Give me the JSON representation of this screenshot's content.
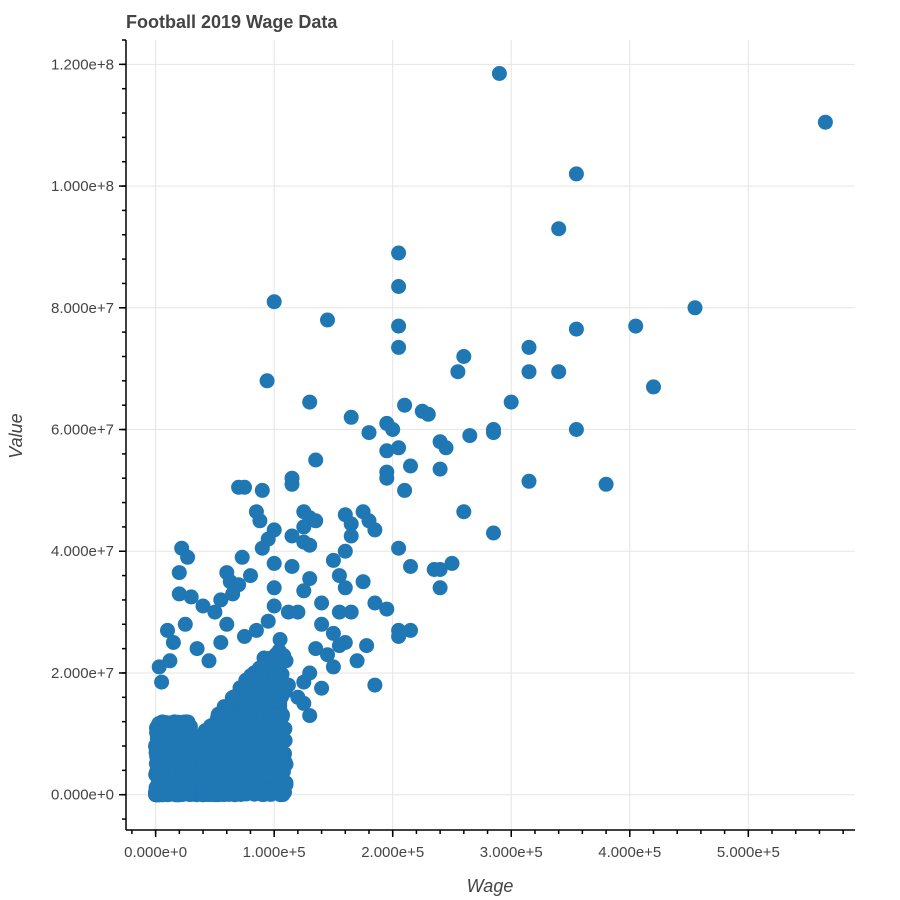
{
  "chart_data": {
    "type": "scatter",
    "title": "Football 2019 Wage Data",
    "xlabel": "Wage",
    "ylabel": "Value",
    "xlim": [
      -25000,
      590000
    ],
    "ylim": [
      -5800000,
      124000000
    ],
    "x_ticks": [
      0,
      100000,
      200000,
      300000,
      400000,
      500000
    ],
    "x_tick_labels": [
      "0.000e+0",
      "1.000e+5",
      "2.000e+5",
      "3.000e+5",
      "4.000e+5",
      "5.000e+5"
    ],
    "x_minor_step": 20000,
    "y_ticks": [
      0,
      20000000,
      40000000,
      60000000,
      80000000,
      100000000,
      120000000
    ],
    "y_tick_labels": [
      "0.000e+0",
      "2.000e+7",
      "4.000e+7",
      "6.000e+7",
      "8.000e+7",
      "1.000e+8",
      "1.200e+8"
    ],
    "y_minor_step": 4000000,
    "grid": true,
    "marker_color": "#1f77b4",
    "series": [
      {
        "points": [
          [
            290000,
            118500000
          ],
          [
            565000,
            110500000
          ],
          [
            355000,
            102000000
          ],
          [
            340000,
            93000000
          ],
          [
            205000,
            89000000
          ],
          [
            205000,
            83500000
          ],
          [
            100000,
            81000000
          ],
          [
            455000,
            80000000
          ],
          [
            145000,
            78000000
          ],
          [
            205000,
            77000000
          ],
          [
            405000,
            77000000
          ],
          [
            355000,
            76500000
          ],
          [
            205000,
            73500000
          ],
          [
            315000,
            73500000
          ],
          [
            260000,
            72000000
          ],
          [
            315000,
            69500000
          ],
          [
            340000,
            69500000
          ],
          [
            255000,
            69500000
          ],
          [
            94000,
            68000000
          ],
          [
            420000,
            67000000
          ],
          [
            130000,
            64500000
          ],
          [
            300000,
            64500000
          ],
          [
            210000,
            64000000
          ],
          [
            225000,
            63000000
          ],
          [
            230000,
            62500000
          ],
          [
            165000,
            62000000
          ],
          [
            195000,
            61000000
          ],
          [
            200000,
            60000000
          ],
          [
            285000,
            60000000
          ],
          [
            355000,
            60000000
          ],
          [
            285000,
            59500000
          ],
          [
            180000,
            59500000
          ],
          [
            265000,
            59000000
          ],
          [
            240000,
            58000000
          ],
          [
            245000,
            57000000
          ],
          [
            205000,
            57000000
          ],
          [
            195000,
            56500000
          ],
          [
            135000,
            55000000
          ],
          [
            215000,
            54000000
          ],
          [
            240000,
            53500000
          ],
          [
            195000,
            53000000
          ],
          [
            195000,
            52000000
          ],
          [
            115000,
            52000000
          ],
          [
            315000,
            51500000
          ],
          [
            380000,
            51000000
          ],
          [
            115000,
            51000000
          ],
          [
            75000,
            50500000
          ],
          [
            70000,
            50500000
          ],
          [
            90000,
            50000000
          ],
          [
            210000,
            50000000
          ],
          [
            260000,
            46500000
          ],
          [
            125000,
            46500000
          ],
          [
            85000,
            46500000
          ],
          [
            175000,
            46500000
          ],
          [
            160000,
            46000000
          ],
          [
            130000,
            45500000
          ],
          [
            135000,
            45000000
          ],
          [
            180000,
            45000000
          ],
          [
            88000,
            45000000
          ],
          [
            165000,
            44500000
          ],
          [
            125000,
            44000000
          ],
          [
            185000,
            43500000
          ],
          [
            100000,
            43500000
          ],
          [
            285000,
            43000000
          ],
          [
            115000,
            42500000
          ],
          [
            165000,
            42500000
          ],
          [
            95000,
            42000000
          ],
          [
            125000,
            41500000
          ],
          [
            130000,
            41000000
          ],
          [
            90000,
            40500000
          ],
          [
            22000,
            40500000
          ],
          [
            205000,
            40500000
          ],
          [
            160000,
            40000000
          ],
          [
            27000,
            39000000
          ],
          [
            73000,
            39000000
          ],
          [
            150000,
            38500000
          ],
          [
            250000,
            38000000
          ],
          [
            100000,
            38000000
          ],
          [
            115000,
            37500000
          ],
          [
            215000,
            37500000
          ],
          [
            235000,
            37000000
          ],
          [
            240000,
            37000000
          ],
          [
            20000,
            36500000
          ],
          [
            60000,
            36500000
          ],
          [
            155000,
            36000000
          ],
          [
            80000,
            36000000
          ],
          [
            130000,
            35500000
          ],
          [
            175000,
            35000000
          ],
          [
            63000,
            35000000
          ],
          [
            70000,
            34500000
          ],
          [
            160000,
            34000000
          ],
          [
            240000,
            34000000
          ],
          [
            100000,
            34000000
          ],
          [
            125000,
            33500000
          ],
          [
            20000,
            33000000
          ],
          [
            30000,
            32500000
          ],
          [
            55000,
            32000000
          ],
          [
            185000,
            31500000
          ],
          [
            140000,
            31500000
          ],
          [
            40000,
            31000000
          ],
          [
            195000,
            30500000
          ],
          [
            120000,
            30000000
          ],
          [
            165000,
            30000000
          ],
          [
            155000,
            30000000
          ],
          [
            10000,
            27000000
          ],
          [
            215000,
            27000000
          ],
          [
            205000,
            27000000
          ],
          [
            205000,
            26000000
          ],
          [
            160000,
            25000000
          ],
          [
            155000,
            24500000
          ],
          [
            178000,
            24500000
          ],
          [
            35000,
            24000000
          ],
          [
            170000,
            22000000
          ],
          [
            3000,
            21000000
          ],
          [
            185000,
            18000000
          ],
          [
            140000,
            17500000
          ],
          [
            120000,
            16000000
          ],
          [
            95000,
            7500000
          ],
          [
            110000,
            5000000
          ],
          [
            95000,
            4000000
          ],
          [
            93000,
            3500000
          ],
          [
            75000,
            3000000
          ],
          [
            15000,
            25000000
          ],
          [
            45000,
            22000000
          ],
          [
            5000,
            18500000
          ],
          [
            110000,
            22000000
          ],
          [
            125000,
            15000000
          ],
          [
            130000,
            13000000
          ],
          [
            50000,
            30000000
          ],
          [
            60000,
            28000000
          ],
          [
            75000,
            26000000
          ],
          [
            85000,
            27000000
          ],
          [
            95000,
            28500000
          ],
          [
            105000,
            25500000
          ],
          [
            135000,
            24000000
          ],
          [
            145000,
            23000000
          ],
          [
            150000,
            21000000
          ],
          [
            130000,
            20000000
          ],
          [
            112000,
            18000000
          ],
          [
            125000,
            18500000
          ],
          [
            150000,
            26500000
          ],
          [
            140000,
            28000000
          ],
          [
            112000,
            30000000
          ],
          [
            100000,
            31000000
          ],
          [
            65000,
            33000000
          ],
          [
            55000,
            25000000
          ],
          [
            25000,
            28000000
          ],
          [
            12000,
            22000000
          ]
        ]
      }
    ],
    "cluster": {
      "wage_max": 110000,
      "value_max": 24000000,
      "count": 1400,
      "extra_low": 500
    }
  }
}
